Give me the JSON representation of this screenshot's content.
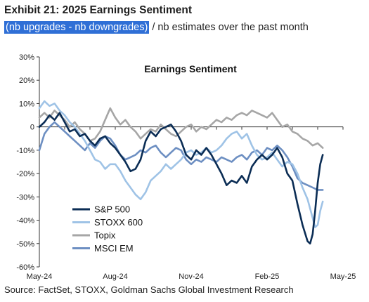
{
  "header": {
    "title": "Exhibit 21: 2025 Earnings Sentiment",
    "subtitle_highlight": "(nb upgrades - nb downgrades)",
    "subtitle_rest": " / nb estimates over the past month"
  },
  "footer": {
    "source": "Source: FactSet, STOXX, Goldman Sachs Global Investment Research"
  },
  "chart_data": {
    "type": "line",
    "title": "Earnings Sentiment",
    "xlabel": "",
    "ylabel": "",
    "ylim": [
      -60,
      30
    ],
    "yticks": [
      30,
      20,
      10,
      0,
      -10,
      -20,
      -30,
      -40,
      -50,
      -60
    ],
    "ytick_labels": [
      "30%",
      "20%",
      "10%",
      "0",
      "-10%",
      "-20%",
      "-30%",
      "-40%",
      "-50%",
      "-60%"
    ],
    "x_tick_labels": [
      "May-24",
      "Aug-24",
      "Nov-24",
      "Feb-25",
      "May-25"
    ],
    "x_tick_months": [
      0,
      3,
      6,
      9,
      12
    ],
    "xlim_months": [
      0,
      12
    ],
    "grid": false,
    "legend_position": "lower-left",
    "series": [
      {
        "name": "S&P 500",
        "color": "#0b2d55",
        "points": [
          [
            0.0,
            0
          ],
          [
            0.2,
            2
          ],
          [
            0.4,
            5
          ],
          [
            0.6,
            3
          ],
          [
            0.8,
            6
          ],
          [
            1.0,
            2
          ],
          [
            1.2,
            -2
          ],
          [
            1.4,
            -1
          ],
          [
            1.6,
            -4
          ],
          [
            1.8,
            -3
          ],
          [
            2.0,
            -6
          ],
          [
            2.2,
            -8
          ],
          [
            2.4,
            -5
          ],
          [
            2.6,
            -4
          ],
          [
            2.8,
            -7
          ],
          [
            3.0,
            -9
          ],
          [
            3.2,
            -12
          ],
          [
            3.4,
            -15
          ],
          [
            3.6,
            -19
          ],
          [
            3.8,
            -18
          ],
          [
            4.0,
            -14
          ],
          [
            4.2,
            -6
          ],
          [
            4.4,
            -2
          ],
          [
            4.6,
            -4
          ],
          [
            4.8,
            -1
          ],
          [
            5.0,
            0
          ],
          [
            5.2,
            1
          ],
          [
            5.4,
            -2
          ],
          [
            5.6,
            -6
          ],
          [
            5.8,
            -12
          ],
          [
            6.0,
            -14
          ],
          [
            6.2,
            -10
          ],
          [
            6.4,
            -12
          ],
          [
            6.6,
            -9
          ],
          [
            6.8,
            -12
          ],
          [
            7.0,
            -16
          ],
          [
            7.2,
            -20
          ],
          [
            7.4,
            -25
          ],
          [
            7.6,
            -23
          ],
          [
            7.8,
            -24
          ],
          [
            8.0,
            -21
          ],
          [
            8.2,
            -24
          ],
          [
            8.4,
            -17
          ],
          [
            8.6,
            -14
          ],
          [
            8.8,
            -12
          ],
          [
            9.0,
            -14
          ],
          [
            9.2,
            -12
          ],
          [
            9.4,
            -9
          ],
          [
            9.6,
            -13
          ],
          [
            9.8,
            -20
          ],
          [
            10.0,
            -23
          ],
          [
            10.2,
            -33
          ],
          [
            10.4,
            -42
          ],
          [
            10.6,
            -49
          ],
          [
            10.7,
            -50
          ],
          [
            10.8,
            -46
          ],
          [
            10.9,
            -36
          ],
          [
            11.0,
            -24
          ],
          [
            11.1,
            -16
          ],
          [
            11.2,
            -12
          ]
        ]
      },
      {
        "name": "STOXX 600",
        "color": "#9fc3e6",
        "points": [
          [
            0.0,
            8
          ],
          [
            0.2,
            11
          ],
          [
            0.4,
            9
          ],
          [
            0.6,
            10
          ],
          [
            0.8,
            7
          ],
          [
            1.0,
            5
          ],
          [
            1.2,
            2
          ],
          [
            1.4,
            0
          ],
          [
            1.6,
            -3
          ],
          [
            1.8,
            -6
          ],
          [
            2.0,
            -10
          ],
          [
            2.2,
            -14
          ],
          [
            2.4,
            -15
          ],
          [
            2.6,
            -18
          ],
          [
            2.8,
            -16
          ],
          [
            3.0,
            -16
          ],
          [
            3.2,
            -19
          ],
          [
            3.4,
            -23
          ],
          [
            3.6,
            -26
          ],
          [
            3.8,
            -29
          ],
          [
            4.0,
            -31
          ],
          [
            4.2,
            -28
          ],
          [
            4.4,
            -23
          ],
          [
            4.6,
            -21
          ],
          [
            4.8,
            -19
          ],
          [
            5.0,
            -16
          ],
          [
            5.2,
            -18
          ],
          [
            5.4,
            -16
          ],
          [
            5.6,
            -14
          ],
          [
            5.8,
            -11
          ],
          [
            6.0,
            -10
          ],
          [
            6.2,
            -12
          ],
          [
            6.4,
            -11
          ],
          [
            6.6,
            -9
          ],
          [
            6.8,
            -11
          ],
          [
            7.0,
            -10
          ],
          [
            7.2,
            -8
          ],
          [
            7.4,
            -5
          ],
          [
            7.6,
            -3
          ],
          [
            7.8,
            -2
          ],
          [
            8.0,
            -5
          ],
          [
            8.2,
            -3
          ],
          [
            8.4,
            -8
          ],
          [
            8.6,
            -12
          ],
          [
            8.8,
            -14
          ],
          [
            9.0,
            -13
          ],
          [
            9.2,
            -11
          ],
          [
            9.4,
            -14
          ],
          [
            9.6,
            -17
          ],
          [
            9.8,
            -15
          ],
          [
            10.0,
            -16
          ],
          [
            10.2,
            -20
          ],
          [
            10.4,
            -26
          ],
          [
            10.6,
            -31
          ],
          [
            10.8,
            -39
          ],
          [
            10.9,
            -43
          ],
          [
            11.0,
            -42
          ],
          [
            11.1,
            -36
          ],
          [
            11.2,
            -32
          ]
        ]
      },
      {
        "name": "Topix",
        "color": "#a6a6a6",
        "points": [
          [
            0.0,
            4
          ],
          [
            0.2,
            6
          ],
          [
            0.4,
            4
          ],
          [
            0.6,
            7
          ],
          [
            0.8,
            5
          ],
          [
            1.0,
            3
          ],
          [
            1.2,
            0
          ],
          [
            1.4,
            2
          ],
          [
            1.6,
            -1
          ],
          [
            1.8,
            -3
          ],
          [
            2.0,
            -6
          ],
          [
            2.2,
            -5
          ],
          [
            2.4,
            -2
          ],
          [
            2.6,
            3
          ],
          [
            2.8,
            8
          ],
          [
            3.0,
            4
          ],
          [
            3.2,
            1
          ],
          [
            3.4,
            3
          ],
          [
            3.6,
            0
          ],
          [
            3.8,
            -2
          ],
          [
            4.0,
            -5
          ],
          [
            4.2,
            -3
          ],
          [
            4.4,
            -1
          ],
          [
            4.6,
            -2
          ],
          [
            4.8,
            1
          ],
          [
            5.0,
            -1
          ],
          [
            5.2,
            -3
          ],
          [
            5.4,
            -4
          ],
          [
            5.6,
            -2
          ],
          [
            5.8,
            0
          ],
          [
            6.0,
            1
          ],
          [
            6.2,
            -2
          ],
          [
            6.4,
            0
          ],
          [
            6.6,
            -1
          ],
          [
            6.8,
            1
          ],
          [
            7.0,
            3
          ],
          [
            7.2,
            2
          ],
          [
            7.4,
            4
          ],
          [
            7.6,
            3
          ],
          [
            7.8,
            5
          ],
          [
            8.0,
            6
          ],
          [
            8.2,
            5
          ],
          [
            8.4,
            7
          ],
          [
            8.6,
            6
          ],
          [
            8.8,
            5
          ],
          [
            9.0,
            4
          ],
          [
            9.2,
            6
          ],
          [
            9.4,
            3
          ],
          [
            9.6,
            0
          ],
          [
            9.8,
            1
          ],
          [
            10.0,
            -2
          ],
          [
            10.2,
            -3
          ],
          [
            10.4,
            -5
          ],
          [
            10.6,
            -6
          ],
          [
            10.8,
            -8
          ],
          [
            11.0,
            -7
          ],
          [
            11.2,
            -9
          ]
        ]
      },
      {
        "name": "MSCI EM",
        "color": "#6d8fc2",
        "points": [
          [
            0.0,
            -10
          ],
          [
            0.2,
            -3
          ],
          [
            0.4,
            0
          ],
          [
            0.6,
            2
          ],
          [
            0.8,
            0
          ],
          [
            1.0,
            -2
          ],
          [
            1.2,
            -4
          ],
          [
            1.4,
            -6
          ],
          [
            1.6,
            -8
          ],
          [
            1.8,
            -10
          ],
          [
            2.0,
            -7
          ],
          [
            2.2,
            -9
          ],
          [
            2.4,
            -6
          ],
          [
            2.6,
            -4
          ],
          [
            2.8,
            -5
          ],
          [
            3.0,
            -8
          ],
          [
            3.2,
            -12
          ],
          [
            3.4,
            -14
          ],
          [
            3.6,
            -13
          ],
          [
            3.8,
            -12
          ],
          [
            4.0,
            -10
          ],
          [
            4.2,
            -11
          ],
          [
            4.4,
            -9
          ],
          [
            4.6,
            -8
          ],
          [
            4.8,
            -11
          ],
          [
            5.0,
            -13
          ],
          [
            5.2,
            -11
          ],
          [
            5.4,
            -9
          ],
          [
            5.6,
            -10
          ],
          [
            5.8,
            -14
          ],
          [
            6.0,
            -16
          ],
          [
            6.2,
            -14
          ],
          [
            6.4,
            -15
          ],
          [
            6.6,
            -13
          ],
          [
            6.8,
            -14
          ],
          [
            7.0,
            -15
          ],
          [
            7.2,
            -13
          ],
          [
            7.4,
            -14
          ],
          [
            7.6,
            -15
          ],
          [
            7.8,
            -13
          ],
          [
            8.0,
            -12
          ],
          [
            8.2,
            -14
          ],
          [
            8.4,
            -11
          ],
          [
            8.6,
            -10
          ],
          [
            8.8,
            -12
          ],
          [
            9.0,
            -9
          ],
          [
            9.2,
            -10
          ],
          [
            9.4,
            -8
          ],
          [
            9.6,
            -10
          ],
          [
            9.8,
            -13
          ],
          [
            10.0,
            -17
          ],
          [
            10.2,
            -22
          ],
          [
            10.4,
            -24
          ],
          [
            10.6,
            -25
          ],
          [
            10.8,
            -26
          ],
          [
            11.0,
            -27
          ],
          [
            11.2,
            -27
          ]
        ]
      }
    ]
  }
}
